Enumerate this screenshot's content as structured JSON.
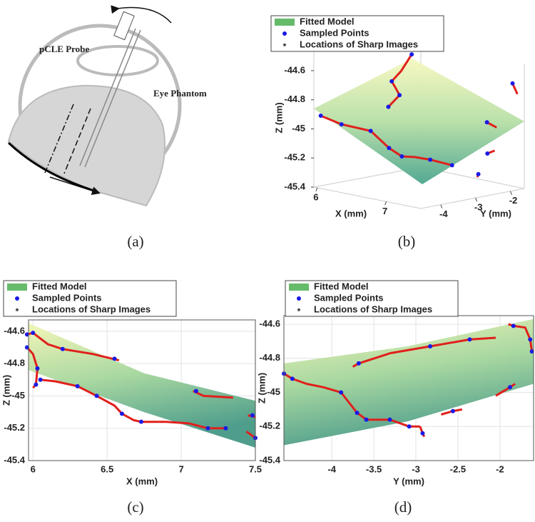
{
  "diagram": {
    "probe_label": "pCLE Probe",
    "phantom_label": "Eye Phantom",
    "caption": "(a)"
  },
  "chart_data": [
    {
      "type": "surface3d",
      "caption": "(b)",
      "xlabel": "X (mm)",
      "ylabel": "Y (mm)",
      "zlabel": "Z (mm)",
      "xlim": [
        5.95,
        7.5
      ],
      "ylim": [
        -4.57,
        -1.6
      ],
      "zlim": [
        -45.4,
        -44.6
      ],
      "xticks": [
        6,
        7
      ],
      "yticks": [
        -4,
        -3,
        -2
      ],
      "zticks": [
        -45.4,
        -45.2,
        -45,
        -44.8,
        -44.6
      ],
      "series": [
        {
          "name": "Fitted Model",
          "color": "#66bb6a"
        },
        {
          "name": "Sampled Points",
          "color": "#1a1ae6",
          "x": [
            5.99,
            6.2,
            6.55,
            6.58,
            6.05,
            6.3,
            6.43,
            6.6,
            6.73,
            7.0,
            7.2,
            7.1,
            7.35,
            7.45,
            7.5
          ],
          "y": [
            -1.84,
            -2.83,
            -3.3,
            -3.68,
            -4.57,
            -4.47,
            -3.89,
            -3.7,
            -3.59,
            -3.31,
            -3.08,
            -1.88,
            -1.64,
            -2.56,
            -2.92
          ],
          "z": [
            -44.61,
            -44.73,
            -44.77,
            -44.83,
            -44.9,
            -44.94,
            -45.0,
            -45.11,
            -45.16,
            -45.17,
            -45.2,
            -44.97,
            -44.69,
            -45.12,
            -45.24
          ]
        },
        {
          "name": "Locations of Sharp Images",
          "color": "#e0201c",
          "x": [
            5.99,
            6.1,
            6.2,
            6.4,
            6.55,
            6.58,
            null,
            6.05,
            6.3,
            6.43,
            6.6,
            6.73,
            6.85,
            7.0,
            7.2,
            null,
            7.1,
            7.2,
            null,
            7.35,
            7.4,
            null,
            7.45,
            7.5,
            null,
            7.5,
            7.5
          ],
          "y": [
            -1.84,
            -2.36,
            -2.83,
            -3.1,
            -3.3,
            -3.68,
            null,
            -4.57,
            -4.47,
            -3.89,
            -3.7,
            -3.59,
            -3.45,
            -3.31,
            -3.08,
            null,
            -1.88,
            -1.8,
            null,
            -1.64,
            -1.6,
            null,
            -2.56,
            -2.45,
            null,
            -2.92,
            -2.95
          ],
          "z": [
            -44.61,
            -44.69,
            -44.73,
            -44.75,
            -44.77,
            -44.83,
            null,
            -44.9,
            -44.94,
            -45.0,
            -45.11,
            -45.16,
            -45.16,
            -45.17,
            -45.2,
            null,
            -44.97,
            -45.0,
            null,
            -44.69,
            -44.76,
            null,
            -45.12,
            -45.1,
            null,
            -45.24,
            -45.26
          ]
        }
      ]
    },
    {
      "type": "scatter",
      "caption": "(c)",
      "xlabel": "X (mm)",
      "ylabel": "Z (mm)",
      "xlim": [
        5.97,
        7.5
      ],
      "ylim": [
        -45.4,
        -44.53
      ],
      "xticks": [
        6,
        6.5,
        7,
        7.5
      ],
      "yticks": [
        -45.4,
        -45.2,
        -45,
        -44.8,
        -44.6
      ],
      "grid": true,
      "series": [
        {
          "name": "Fitted Model",
          "color": "#66bb6a",
          "x": [
            5.97,
            6.75,
            7.5
          ],
          "values": [
            -44.55,
            -44.86,
            -45.03
          ],
          "lower": [
            -44.84,
            -45.1,
            -45.32
          ]
        },
        {
          "name": "Sampled Points",
          "color": "#1a1ae6",
          "x": [
            5.96,
            6.0,
            6.2,
            6.55,
            5.96,
            6.03,
            6.02,
            6.05,
            6.3,
            6.43,
            6.6,
            6.73,
            7.18,
            7.3,
            7.1,
            7.48,
            7.5
          ],
          "values": [
            -44.62,
            -44.61,
            -44.71,
            -44.77,
            -44.7,
            -44.83,
            -44.93,
            -44.9,
            -44.94,
            -45.0,
            -45.11,
            -45.16,
            -45.2,
            -45.2,
            -44.97,
            -45.12,
            -45.26
          ]
        },
        {
          "name": "Locations of Sharp Images",
          "color": "#e0201c",
          "x": [
            5.96,
            6.0,
            6.1,
            6.2,
            6.4,
            6.58,
            null,
            5.96,
            6.0,
            6.03,
            6.02,
            6.0,
            null,
            6.05,
            6.15,
            6.3,
            6.43,
            6.55,
            6.6,
            6.68,
            6.73,
            6.9,
            7.05,
            7.18,
            7.3,
            null,
            7.08,
            7.15,
            7.35,
            null,
            7.45,
            7.5,
            null,
            7.44,
            7.5
          ],
          "values": [
            -44.62,
            -44.61,
            -44.68,
            -44.71,
            -44.74,
            -44.78,
            null,
            -44.7,
            -44.74,
            -44.83,
            -44.93,
            -44.95,
            null,
            -44.9,
            -44.91,
            -44.94,
            -45.0,
            -45.06,
            -45.11,
            -45.15,
            -45.16,
            -45.16,
            -45.17,
            -45.2,
            -45.2,
            null,
            -44.97,
            -45.0,
            -45.01,
            null,
            -45.12,
            -45.13,
            null,
            -45.22,
            -45.26
          ]
        }
      ]
    },
    {
      "type": "scatter",
      "caption": "(d)",
      "xlabel": "Y (mm)",
      "ylabel": "Z (mm)",
      "xlim": [
        -4.57,
        -1.6
      ],
      "ylim": [
        -45.4,
        -44.55
      ],
      "xticks": [
        -4,
        -3.5,
        -3,
        -2.5,
        -2
      ],
      "yticks": [
        -45.4,
        -45.2,
        -45,
        -44.8,
        -44.6
      ],
      "grid": true,
      "series": [
        {
          "name": "Fitted Model",
          "color": "#66bb6a",
          "x": [
            -4.57,
            -3.1,
            -1.6
          ],
          "values": [
            -44.83,
            -44.73,
            -44.57
          ],
          "lower": [
            -45.31,
            -45.17,
            -44.95
          ]
        },
        {
          "name": "Sampled Points",
          "color": "#1a1ae6",
          "x": [
            -3.68,
            -2.83,
            -2.36,
            -1.84,
            -1.64,
            -1.62,
            -4.57,
            -4.47,
            -3.89,
            -3.7,
            -3.59,
            -3.31,
            -3.08,
            -2.56,
            -1.88,
            -2.92
          ],
          "values": [
            -44.83,
            -44.73,
            -44.69,
            -44.61,
            -44.69,
            -44.76,
            -44.89,
            -44.92,
            -45.0,
            -45.12,
            -45.16,
            -45.16,
            -45.2,
            -45.11,
            -44.97,
            -45.24
          ]
        },
        {
          "name": "Locations of Sharp Images",
          "color": "#e0201c",
          "x": [
            -3.75,
            -3.68,
            -3.3,
            -2.83,
            -2.36,
            -2.05,
            null,
            -1.9,
            -1.84,
            -1.7,
            -1.64,
            -1.62,
            null,
            -4.57,
            -4.47,
            -4.3,
            -4.1,
            -3.89,
            -3.7,
            -3.59,
            -3.31,
            -3.08,
            -2.95,
            null,
            -2.7,
            -2.56,
            -2.45,
            null,
            -2.05,
            -1.88,
            -1.82,
            null,
            -2.95,
            -2.92,
            -2.9
          ],
          "values": [
            -44.85,
            -44.83,
            -44.77,
            -44.73,
            -44.69,
            -44.68,
            null,
            -44.6,
            -44.61,
            -44.62,
            -44.69,
            -44.76,
            null,
            -44.89,
            -44.92,
            -44.95,
            -44.97,
            -45.0,
            -45.12,
            -45.16,
            -45.16,
            -45.2,
            -45.2,
            null,
            -45.13,
            -45.11,
            -45.1,
            null,
            -45.02,
            -44.97,
            -44.95,
            null,
            -45.2,
            -45.24,
            -45.26
          ]
        }
      ]
    }
  ]
}
